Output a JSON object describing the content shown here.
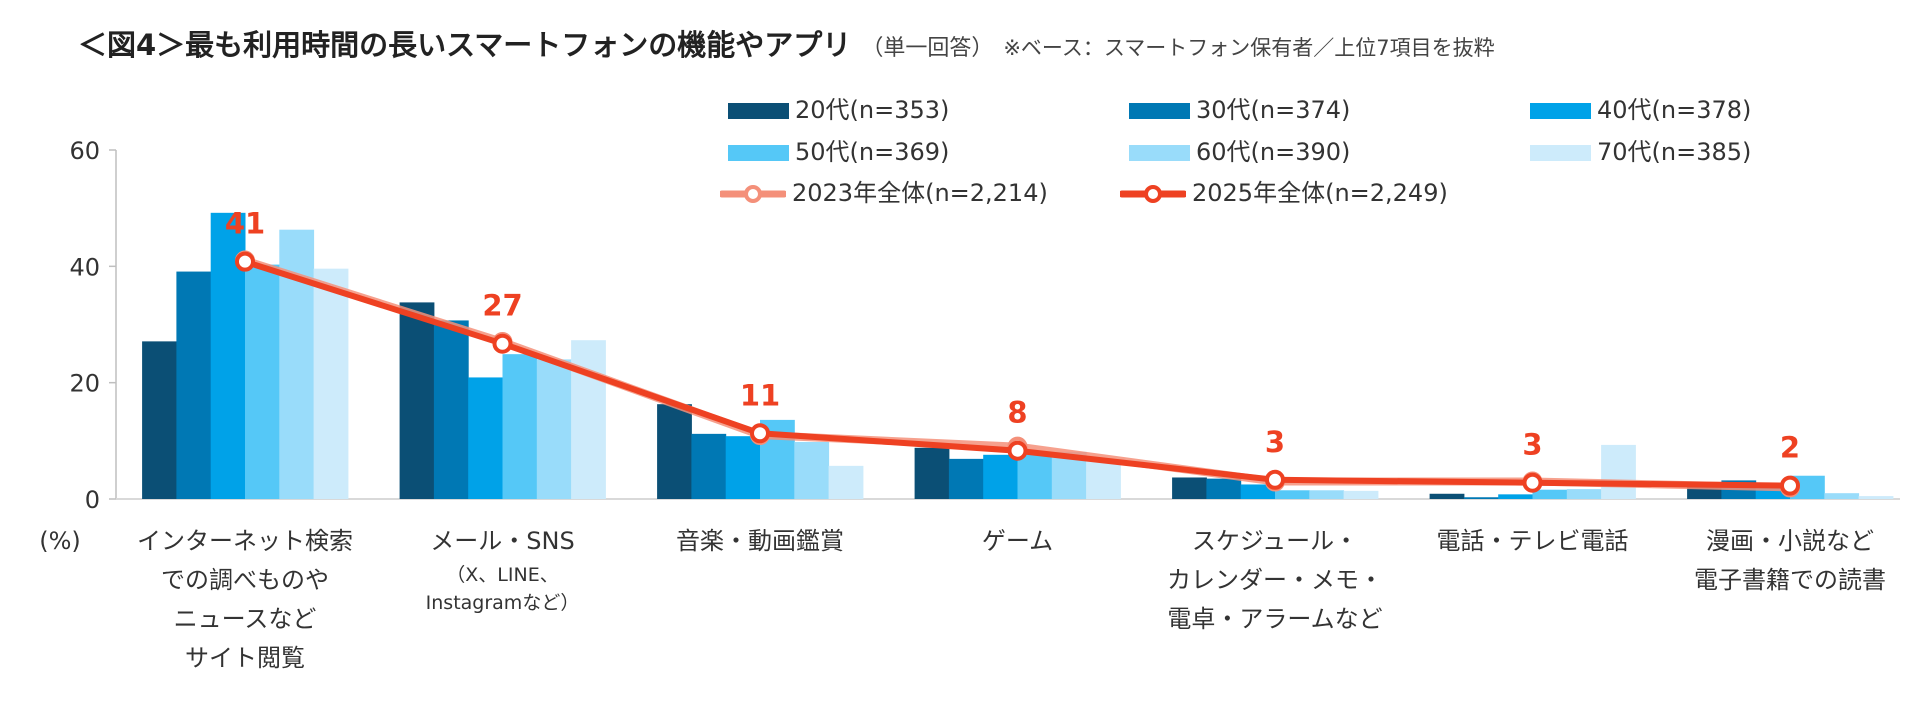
{
  "title": {
    "main": "＜図4＞最も利用時間の長いスマートフォンの機能やアプリ",
    "sub": "（単一回答）",
    "note": "※ベース：スマートフォン保有者／上位7項目を抜粋"
  },
  "chart_data": {
    "type": "bar",
    "ylabel": "(%)",
    "ylim": [
      0,
      60
    ],
    "yticks": [
      0,
      20,
      40,
      60
    ],
    "grid": false,
    "legend_placement": "top-right",
    "categories": [
      {
        "label": "インターネット検索\nでの調べものや\nニュースなど\nサイト閲覧",
        "sub": ""
      },
      {
        "label": "メール・SNS",
        "sub": "（X、LINE、\nInstagramなど）"
      },
      {
        "label": "音楽・動画鑑賞",
        "sub": ""
      },
      {
        "label": "ゲーム",
        "sub": ""
      },
      {
        "label": "スケジュール・\nカレンダー・メモ・\n電卓・アラームなど",
        "sub": ""
      },
      {
        "label": "電話・テレビ電話",
        "sub": ""
      },
      {
        "label": "漫画・小説など\n電子書籍での読書",
        "sub": ""
      }
    ],
    "series": [
      {
        "name": "20代(n=353)",
        "type": "bar",
        "color": "#0b4f75",
        "values": [
          27.1,
          33.8,
          16.3,
          8.8,
          3.7,
          0.9,
          2.5
        ]
      },
      {
        "name": "30代(n=374)",
        "type": "bar",
        "color": "#0078b4",
        "values": [
          39.1,
          30.7,
          11.2,
          6.9,
          3.5,
          0.3,
          3.2
        ]
      },
      {
        "name": "40代(n=378)",
        "type": "bar",
        "color": "#00a2e8",
        "values": [
          49.2,
          20.9,
          10.8,
          7.6,
          2.5,
          0.8,
          2.0
        ]
      },
      {
        "name": "50代(n=369)",
        "type": "bar",
        "color": "#55c8f7",
        "values": [
          40.3,
          24.9,
          13.6,
          8.0,
          1.5,
          1.6,
          4.0
        ]
      },
      {
        "name": "60代(n=390)",
        "type": "bar",
        "color": "#99dcfa",
        "values": [
          46.3,
          24.0,
          9.8,
          8.1,
          1.5,
          1.7,
          1.0
        ]
      },
      {
        "name": "70代(n=385)",
        "type": "bar",
        "color": "#cdebfb",
        "values": [
          39.6,
          27.3,
          5.7,
          6.8,
          1.4,
          9.3,
          0.5
        ]
      },
      {
        "name": "2023年全体(n=2,214)",
        "type": "line",
        "color": "#f4907a",
        "values": [
          41,
          27,
          11,
          9,
          3,
          3,
          2
        ]
      },
      {
        "name": "2025年全体(n=2,249)",
        "type": "line",
        "color": "#ee4122",
        "values": [
          40.8,
          26.7,
          11.3,
          8.3,
          3.3,
          2.8,
          2.3
        ],
        "data_labels": [
          "41",
          "27",
          "11",
          "8",
          "3",
          "3",
          "2"
        ]
      }
    ]
  }
}
